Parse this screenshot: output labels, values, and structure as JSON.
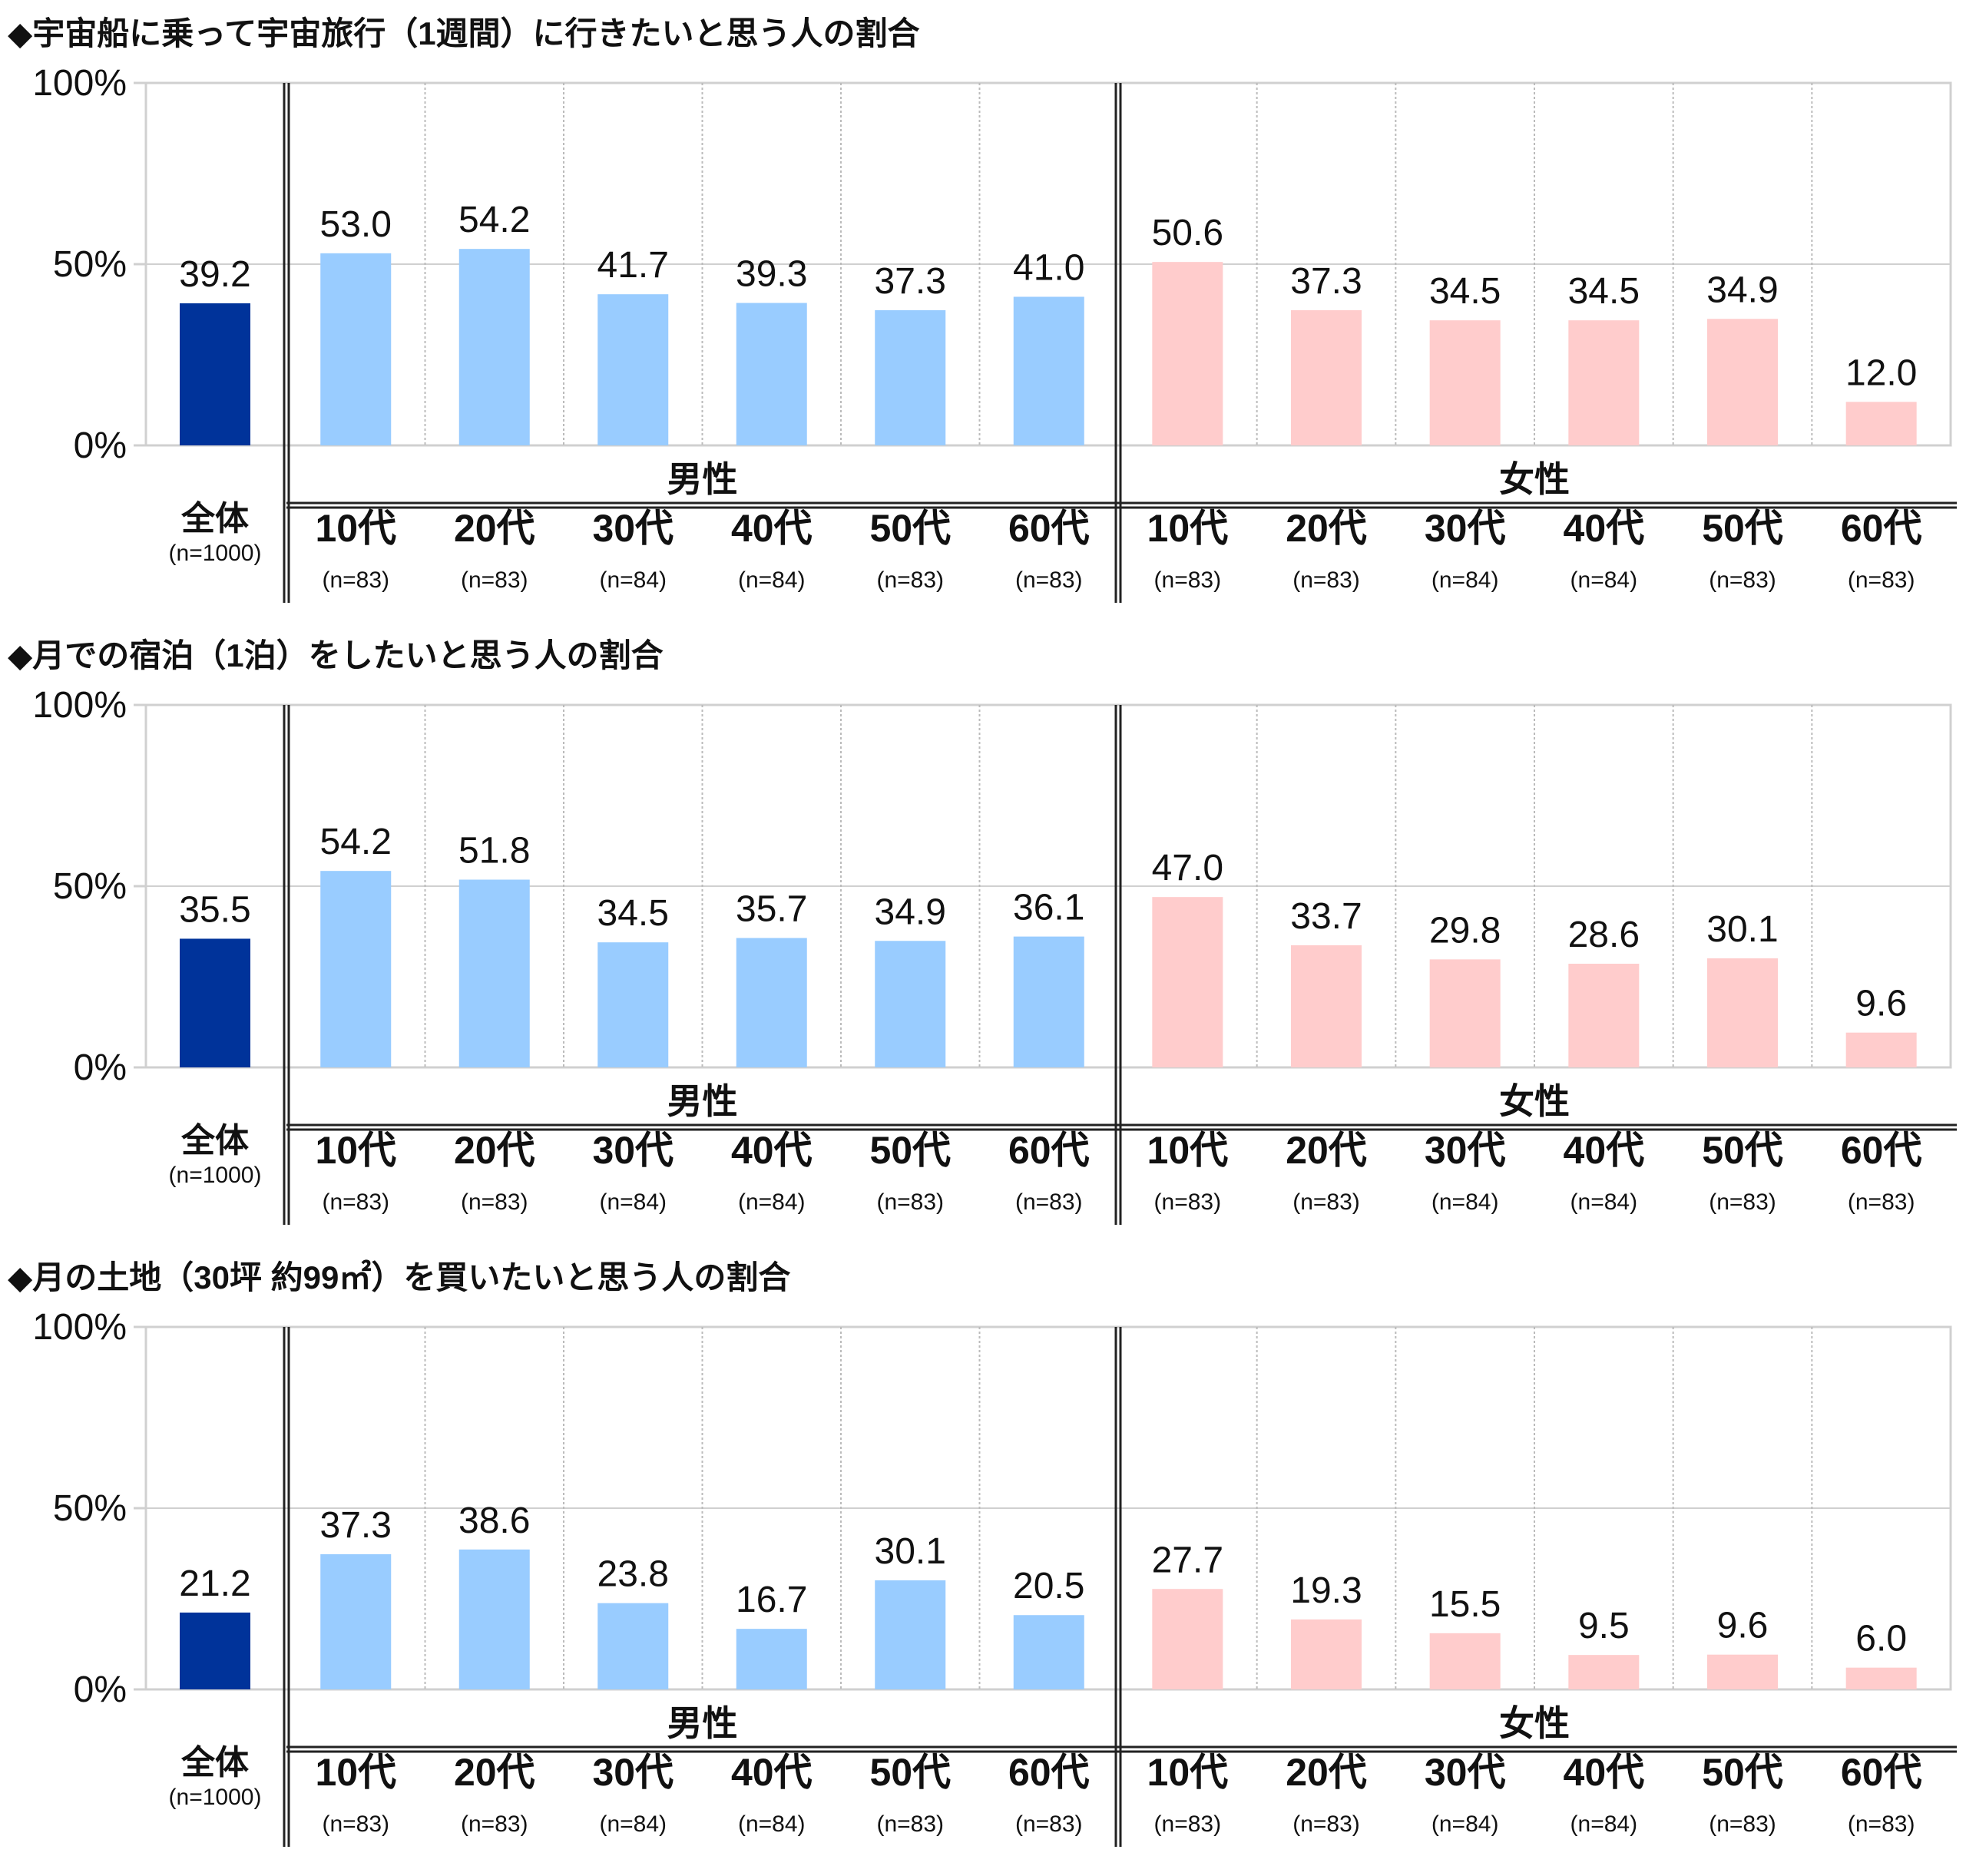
{
  "chart_data": [
    {
      "type": "bar",
      "title": "◆宇宙船に乗って宇宙旅行（1週間）に行きたいと思う人の割合",
      "ylim": [
        0,
        100
      ],
      "yticks": [
        "0%",
        "50%",
        "100%"
      ],
      "overall": {
        "label": "全体",
        "n": "(n=1000)",
        "value": 39.2,
        "value_label": "39.2"
      },
      "groups": [
        {
          "name": "男性",
          "categories": [
            "10代",
            "20代",
            "30代",
            "40代",
            "50代",
            "60代"
          ],
          "n": [
            "(n=83)",
            "(n=83)",
            "(n=84)",
            "(n=84)",
            "(n=83)",
            "(n=83)"
          ],
          "values": [
            53.0,
            54.2,
            41.7,
            39.3,
            37.3,
            41.0
          ],
          "value_labels": [
            "53.0",
            "54.2",
            "41.7",
            "39.3",
            "37.3",
            "41.0"
          ]
        },
        {
          "name": "女性",
          "categories": [
            "10代",
            "20代",
            "30代",
            "40代",
            "50代",
            "60代"
          ],
          "n": [
            "(n=83)",
            "(n=83)",
            "(n=84)",
            "(n=84)",
            "(n=83)",
            "(n=83)"
          ],
          "values": [
            50.6,
            37.3,
            34.5,
            34.5,
            34.9,
            12.0
          ],
          "value_labels": [
            "50.6",
            "37.3",
            "34.5",
            "34.5",
            "34.9",
            "12.0"
          ]
        }
      ]
    },
    {
      "type": "bar",
      "title": "◆月での宿泊（1泊）をしたいと思う人の割合",
      "ylim": [
        0,
        100
      ],
      "yticks": [
        "0%",
        "50%",
        "100%"
      ],
      "overall": {
        "label": "全体",
        "n": "(n=1000)",
        "value": 35.5,
        "value_label": "35.5"
      },
      "groups": [
        {
          "name": "男性",
          "categories": [
            "10代",
            "20代",
            "30代",
            "40代",
            "50代",
            "60代"
          ],
          "n": [
            "(n=83)",
            "(n=83)",
            "(n=84)",
            "(n=84)",
            "(n=83)",
            "(n=83)"
          ],
          "values": [
            54.2,
            51.8,
            34.5,
            35.7,
            34.9,
            36.1
          ],
          "value_labels": [
            "54.2",
            "51.8",
            "34.5",
            "35.7",
            "34.9",
            "36.1"
          ]
        },
        {
          "name": "女性",
          "categories": [
            "10代",
            "20代",
            "30代",
            "40代",
            "50代",
            "60代"
          ],
          "n": [
            "(n=83)",
            "(n=83)",
            "(n=84)",
            "(n=84)",
            "(n=83)",
            "(n=83)"
          ],
          "values": [
            47.0,
            33.7,
            29.8,
            28.6,
            30.1,
            9.6
          ],
          "value_labels": [
            "47.0",
            "33.7",
            "29.8",
            "28.6",
            "30.1",
            "9.6"
          ]
        }
      ]
    },
    {
      "type": "bar",
      "title": "◆月の土地（30坪 約99㎡）を買いたいと思う人の割合",
      "ylim": [
        0,
        100
      ],
      "yticks": [
        "0%",
        "50%",
        "100%"
      ],
      "overall": {
        "label": "全体",
        "n": "(n=1000)",
        "value": 21.2,
        "value_label": "21.2"
      },
      "groups": [
        {
          "name": "男性",
          "categories": [
            "10代",
            "20代",
            "30代",
            "40代",
            "50代",
            "60代"
          ],
          "n": [
            "(n=83)",
            "(n=83)",
            "(n=84)",
            "(n=84)",
            "(n=83)",
            "(n=83)"
          ],
          "values": [
            37.3,
            38.6,
            23.8,
            16.7,
            30.1,
            20.5
          ],
          "value_labels": [
            "37.3",
            "38.6",
            "23.8",
            "16.7",
            "30.1",
            "20.5"
          ]
        },
        {
          "name": "女性",
          "categories": [
            "10代",
            "20代",
            "30代",
            "40代",
            "50代",
            "60代"
          ],
          "n": [
            "(n=83)",
            "(n=83)",
            "(n=84)",
            "(n=84)",
            "(n=83)",
            "(n=83)"
          ],
          "values": [
            27.7,
            19.3,
            15.5,
            9.5,
            9.6,
            6.0
          ],
          "value_labels": [
            "27.7",
            "19.3",
            "15.5",
            "9.5",
            "9.6",
            "6.0"
          ]
        }
      ]
    }
  ],
  "colors": {
    "overall": "#00339a",
    "male": "#99ccff",
    "female": "#ffcccc",
    "grid": "#d0d0d0",
    "axis": "#222222"
  }
}
